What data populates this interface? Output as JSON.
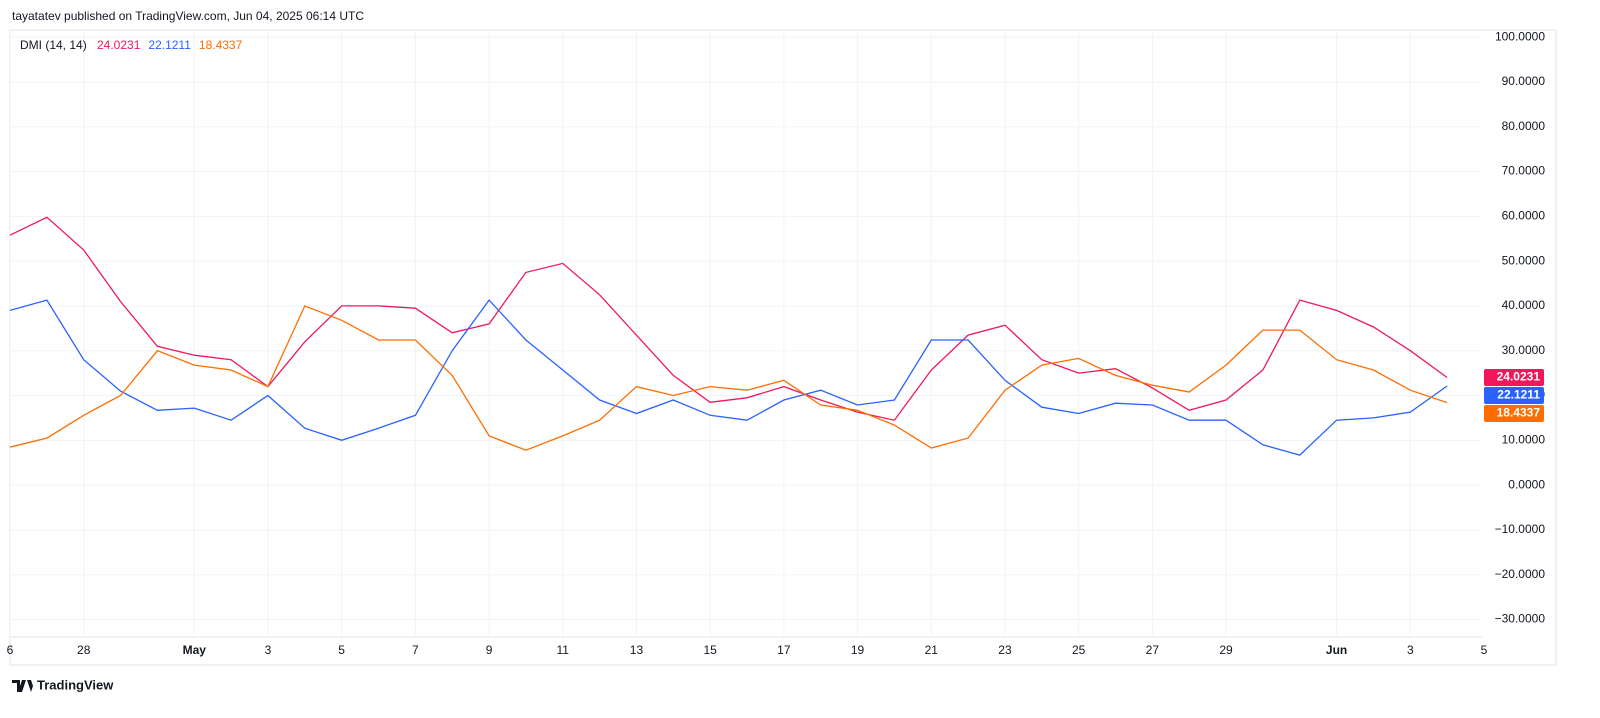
{
  "header": "tayatatev published on TradingView.com, Jun 04, 2025 06:14 UTC",
  "footer": "TradingView",
  "chart_data": {
    "type": "line",
    "title": "DMI (14, 14)",
    "x": [
      "2025-04-26",
      "2025-04-27",
      "2025-04-28",
      "2025-04-29",
      "2025-04-30",
      "2025-05-01",
      "2025-05-02",
      "2025-05-03",
      "2025-05-04",
      "2025-05-05",
      "2025-05-06",
      "2025-05-07",
      "2025-05-08",
      "2025-05-09",
      "2025-05-10",
      "2025-05-11",
      "2025-05-12",
      "2025-05-13",
      "2025-05-14",
      "2025-05-15",
      "2025-05-16",
      "2025-05-17",
      "2025-05-18",
      "2025-05-19",
      "2025-05-20",
      "2025-05-21",
      "2025-05-22",
      "2025-05-23",
      "2025-05-24",
      "2025-05-25",
      "2025-05-26",
      "2025-05-27",
      "2025-05-28",
      "2025-05-29",
      "2025-05-30",
      "2025-05-31",
      "2025-06-01",
      "2025-06-02",
      "2025-06-03",
      "2025-06-04"
    ],
    "series": [
      {
        "color": "#f0185a",
        "values": [
          55.8,
          59.8,
          52.5,
          41,
          31,
          29,
          28,
          22,
          32,
          40,
          40,
          39.5,
          34,
          36,
          47.5,
          49.5,
          42.5,
          33.5,
          24.5,
          18.5,
          19.5,
          22,
          19,
          16.3,
          14.5,
          25.7,
          33.5,
          35.7,
          28,
          25,
          26,
          21.7,
          16.7,
          19,
          25.7,
          41.3,
          39,
          35.3,
          30,
          24.0231
        ]
      },
      {
        "color": "#2962ff",
        "values": [
          39,
          41.3,
          28,
          21,
          16.7,
          17.2,
          14.5,
          20,
          12.7,
          10,
          12.7,
          15.6,
          30,
          41.3,
          32.4,
          25.7,
          19,
          16,
          19,
          15.6,
          14.5,
          19,
          21.2,
          17.9,
          19,
          32.4,
          32.4,
          23.4,
          17.4,
          16,
          18.3,
          17.9,
          14.5,
          14.5,
          9,
          6.7,
          14.5,
          15,
          16.3,
          22.1211
        ]
      },
      {
        "color": "#ff6d00",
        "values": [
          8.5,
          10.5,
          15.6,
          20,
          30,
          26.8,
          25.7,
          22,
          40,
          36.8,
          32.4,
          32.4,
          24.5,
          11,
          7.8,
          11,
          14.5,
          22,
          20,
          22,
          21.2,
          23.4,
          17.9,
          16.7,
          13.4,
          8.3,
          10.5,
          21.2,
          26.8,
          28.3,
          24.5,
          22.3,
          20.8,
          26.8,
          34.6,
          34.6,
          28,
          25.7,
          21.2,
          18.4337
        ]
      }
    ],
    "xlim": [
      "2025-04-26",
      "2025-06-05"
    ],
    "xticks": [
      {
        "value": "2025-04-26",
        "label": "6"
      },
      {
        "value": "2025-04-28",
        "label": "28"
      },
      {
        "value": "2025-05-01",
        "label": "May"
      },
      {
        "value": "2025-05-03",
        "label": "3"
      },
      {
        "value": "2025-05-05",
        "label": "5"
      },
      {
        "value": "2025-05-07",
        "label": "7"
      },
      {
        "value": "2025-05-09",
        "label": "9"
      },
      {
        "value": "2025-05-11",
        "label": "11"
      },
      {
        "value": "2025-05-13",
        "label": "13"
      },
      {
        "value": "2025-05-15",
        "label": "15"
      },
      {
        "value": "2025-05-17",
        "label": "17"
      },
      {
        "value": "2025-05-19",
        "label": "19"
      },
      {
        "value": "2025-05-21",
        "label": "21"
      },
      {
        "value": "2025-05-23",
        "label": "23"
      },
      {
        "value": "2025-05-25",
        "label": "25"
      },
      {
        "value": "2025-05-27",
        "label": "27"
      },
      {
        "value": "2025-05-29",
        "label": "29"
      },
      {
        "value": "2025-06-01",
        "label": "Jun"
      },
      {
        "value": "2025-06-03",
        "label": "3"
      },
      {
        "value": "2025-06-05",
        "label": "5"
      }
    ],
    "ylim": [
      -33.9,
      101.6
    ],
    "yticks": [
      {
        "value": 100,
        "label": "100.0000"
      },
      {
        "value": 90,
        "label": "90.0000"
      },
      {
        "value": 80,
        "label": "80.0000"
      },
      {
        "value": 70,
        "label": "70.0000"
      },
      {
        "value": 60,
        "label": "60.0000"
      },
      {
        "value": 50,
        "label": "50.0000"
      },
      {
        "value": 40,
        "label": "40.0000"
      },
      {
        "value": 30,
        "label": "30.0000"
      },
      {
        "value": 20,
        "label": "20.0000"
      },
      {
        "value": 10,
        "label": "10.0000"
      },
      {
        "value": 0,
        "label": "0.0000"
      },
      {
        "value": -10,
        "label": "−10.0000"
      },
      {
        "value": -20,
        "label": "−20.0000"
      },
      {
        "value": -30,
        "label": "−30.0000"
      }
    ],
    "grid": true
  }
}
